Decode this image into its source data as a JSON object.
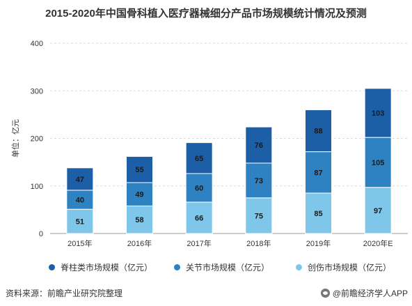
{
  "title": "2015-2020年中国骨科植入医疗器械细分产品市场规模统计情况及预测",
  "source": "资料来源：前瞻产业研究院整理",
  "watermark_credit": "@前瞻经济学人APP",
  "chart_data": {
    "type": "bar",
    "stacked": true,
    "categories": [
      "2015年",
      "2016年",
      "2017年",
      "2018年",
      "2019年",
      "2020年E"
    ],
    "ylabel": "单位：亿元",
    "ylim": [
      0,
      400
    ],
    "yticks": [
      0,
      100,
      200,
      300,
      400
    ],
    "grid": true,
    "legend_position": "bottom",
    "series": [
      {
        "name": "创伤市场规模（亿元）",
        "values": [
          51,
          58,
          66,
          75,
          85,
          97
        ],
        "color": "#7fc7ea"
      },
      {
        "name": "关节市场规模（亿元）",
        "values": [
          40,
          49,
          60,
          73,
          87,
          105
        ],
        "color": "#2e82c1"
      },
      {
        "name": "脊柱类市场规模（亿元）",
        "values": [
          47,
          55,
          65,
          76,
          88,
          103
        ],
        "color": "#1d5fa6"
      }
    ],
    "legend_order": [
      2,
      1,
      0
    ]
  }
}
